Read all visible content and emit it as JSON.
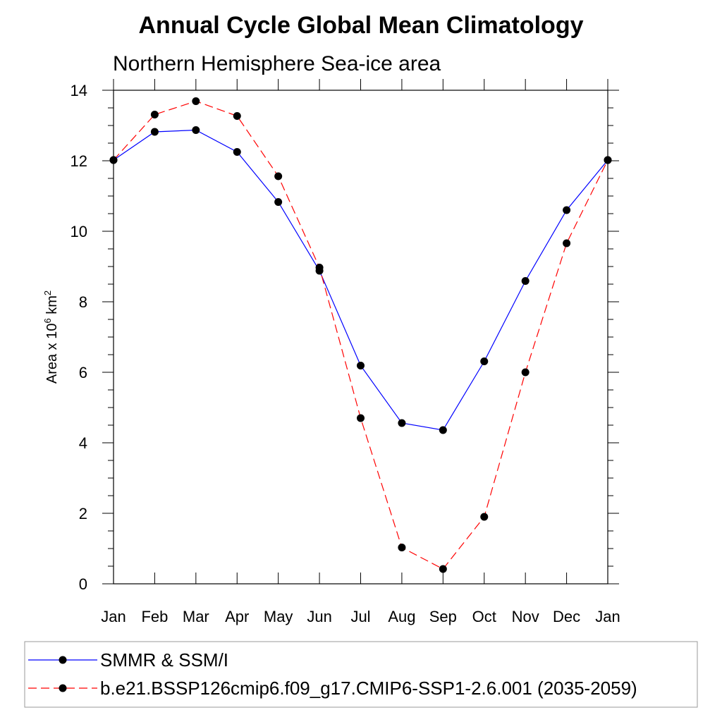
{
  "chart_data": {
    "type": "line",
    "title": "Annual Cycle Global Mean Climatology",
    "subtitle": "Northern Hemisphere Sea-ice area",
    "ylabel": {
      "prefix": "Area x 10",
      "exp1": "6",
      "middle": " km",
      "exp2": "2"
    },
    "categories": [
      "Jan",
      "Feb",
      "Mar",
      "Apr",
      "May",
      "Jun",
      "Jul",
      "Aug",
      "Sep",
      "Oct",
      "Nov",
      "Dec",
      "Jan"
    ],
    "ylim": [
      0,
      14
    ],
    "yticks": [
      "0",
      "2",
      "4",
      "6",
      "8",
      "10",
      "12",
      "14"
    ],
    "grid": false,
    "legend_position": "bottom",
    "series": [
      {
        "name": "SMMR & SSM/I",
        "color": "#0000ff",
        "dash": "solid",
        "values": [
          12.02,
          12.82,
          12.87,
          12.25,
          10.83,
          8.88,
          6.19,
          4.56,
          4.36,
          6.31,
          8.59,
          10.6,
          12.02
        ]
      },
      {
        "name": "b.e21.BSSP126cmip6.f09_g17.CMIP6-SSP1-2.6.001 (2035-2059)",
        "color": "#ff0000",
        "dash": "dashed",
        "values": [
          12.02,
          13.31,
          13.69,
          13.27,
          11.56,
          8.97,
          4.7,
          1.03,
          0.42,
          1.9,
          6.0,
          9.66,
          12.02
        ]
      }
    ]
  }
}
